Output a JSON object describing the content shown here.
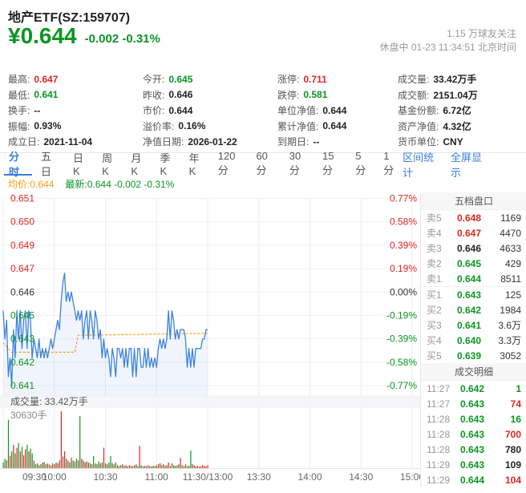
{
  "header": {
    "title": "地产ETF(SZ:159707)",
    "price": "¥0.644",
    "change": "-0.002 -0.31%",
    "followers": "1.15 万球友关注",
    "status_line": "休盘中 01-23 11:34:51 北京时间"
  },
  "colors": {
    "red": "#dd2723",
    "green": "#0a9622",
    "dark": "#222",
    "gray": "#999",
    "blue": "#3b7ddd",
    "orange": "#ff9d0f",
    "line_blue": "#3b82e0"
  },
  "stats": {
    "columns": [
      [
        {
          "label": "最高:",
          "value": "0.647",
          "color": "red"
        },
        {
          "label": "最低:",
          "value": "0.641",
          "color": "green"
        },
        {
          "label": "换手:",
          "value": "--",
          "color": "dark"
        },
        {
          "label": "振幅:",
          "value": "0.93%",
          "color": "dark"
        },
        {
          "label": "成立日:",
          "value": "2021-11-04",
          "color": "dark"
        }
      ],
      [
        {
          "label": "今开:",
          "value": "0.645",
          "color": "green"
        },
        {
          "label": "昨收:",
          "value": "0.646",
          "color": "dark"
        },
        {
          "label": "市价:",
          "value": "0.644",
          "color": "dark"
        },
        {
          "label": "溢价率:",
          "value": "0.16%",
          "color": "dark"
        },
        {
          "label": "净值日期:",
          "value": "2026-01-22",
          "color": "dark"
        }
      ],
      [
        {
          "label": "涨停:",
          "value": "0.711",
          "color": "red"
        },
        {
          "label": "跌停:",
          "value": "0.581",
          "color": "green"
        },
        {
          "label": "单位净值:",
          "value": "0.644",
          "color": "dark"
        },
        {
          "label": "累计净值:",
          "value": "0.644",
          "color": "dark"
        },
        {
          "label": "到期日:",
          "value": "--",
          "color": "dark"
        }
      ],
      [
        {
          "label": "成交量:",
          "value": "33.42万手",
          "color": "dark"
        },
        {
          "label": "成交额:",
          "value": "2151.04万",
          "color": "dark"
        },
        {
          "label": "基金份额:",
          "value": "6.72亿",
          "color": "dark"
        },
        {
          "label": "资产净值:",
          "value": "4.32亿",
          "color": "dark"
        },
        {
          "label": "货币单位:",
          "value": "CNY",
          "color": "dark"
        }
      ]
    ]
  },
  "tabs": {
    "items": [
      {
        "label": "分时",
        "active": true
      },
      {
        "label": "五日",
        "active": false
      },
      {
        "label": "日K",
        "active": false
      },
      {
        "label": "周K",
        "active": false
      },
      {
        "label": "月K",
        "active": false
      },
      {
        "label": "季K",
        "active": false
      },
      {
        "label": "年K",
        "active": false
      },
      {
        "label": "120分",
        "active": false
      },
      {
        "label": "60分",
        "active": false
      },
      {
        "label": "30分",
        "active": false
      },
      {
        "label": "15分",
        "active": false
      },
      {
        "label": "5分",
        "active": false
      },
      {
        "label": "1分",
        "active": false
      }
    ],
    "right_links": [
      "区间统计",
      "全屏显示"
    ]
  },
  "legend": {
    "avg_label": "均价:0.644",
    "latest_label": "最新:0.644 -0.002 -0.31%"
  },
  "chart_data": {
    "type": "line",
    "title": "分时走势图 (minute price chart)",
    "prev_close": 0.646,
    "high": 0.647,
    "low": 0.641,
    "last": 0.644,
    "avg": 0.644,
    "x_axis_labels": [
      "09:30",
      "10:00",
      "10:30",
      "11:00",
      "11:30/13:00",
      "13:30",
      "14:00",
      "14:30",
      "15:00"
    ],
    "y_axis_left": [
      {
        "t": "0.651",
        "c": "red"
      },
      {
        "t": "0.650",
        "c": "red"
      },
      {
        "t": "0.649",
        "c": "red"
      },
      {
        "t": "0.647",
        "c": "red"
      },
      {
        "t": "0.646",
        "c": "dark"
      },
      {
        "t": "0.645",
        "c": "green"
      },
      {
        "t": "0.643",
        "c": "green"
      },
      {
        "t": "0.642",
        "c": "green"
      },
      {
        "t": "0.641",
        "c": "green"
      }
    ],
    "y_axis_right": [
      {
        "t": "0.77%",
        "c": "red"
      },
      {
        "t": "0.58%",
        "c": "red"
      },
      {
        "t": "0.39%",
        "c": "red"
      },
      {
        "t": "0.19%",
        "c": "red"
      },
      {
        "t": "0.00%",
        "c": "dark"
      },
      {
        "t": "-0.19%",
        "c": "green"
      },
      {
        "t": "-0.39%",
        "c": "green"
      },
      {
        "t": "-0.58%",
        "c": "green"
      },
      {
        "t": "-0.77%",
        "c": "green"
      }
    ],
    "pct_range": 0.0077,
    "volume_header": "成交量: 33.42万手",
    "volume_max_label": "30630手",
    "volume_max": 30630,
    "price_series": [
      0.645,
      0.6435,
      0.6445,
      0.6415,
      0.6425,
      0.641,
      0.644,
      0.6425,
      0.645,
      0.6435,
      0.645,
      0.643,
      0.6445,
      0.645,
      0.643,
      0.645,
      0.6445,
      0.6425,
      0.6435,
      0.643,
      0.6425,
      0.6435,
      0.6425,
      0.643,
      0.6425,
      0.643,
      0.6425,
      0.643,
      0.6435,
      0.643,
      0.6435,
      0.644,
      0.6445,
      0.644,
      0.6455,
      0.6465,
      0.647,
      0.6455,
      0.646,
      0.6455,
      0.646,
      0.6455,
      0.645,
      0.6445,
      0.645,
      0.6445,
      0.645,
      0.6435,
      0.6445,
      0.645,
      0.6435,
      0.645,
      0.6445,
      0.6435,
      0.645,
      0.6445,
      0.6435,
      0.644,
      0.6425,
      0.6435,
      0.6425,
      0.643,
      0.6425,
      0.6415,
      0.643,
      0.6425,
      0.6415,
      0.643,
      0.643,
      0.6425,
      0.643,
      0.642,
      0.643,
      0.642,
      0.643,
      0.643,
      0.6415,
      0.643,
      0.6415,
      0.643,
      0.643,
      0.642,
      0.642,
      0.643,
      0.642,
      0.643,
      0.642,
      0.6425,
      0.642,
      0.6425,
      0.642,
      0.643,
      0.6435,
      0.643,
      0.6435,
      0.643,
      0.6435,
      0.645,
      0.6435,
      0.645,
      0.6445,
      0.6435,
      0.644,
      0.6435,
      0.644,
      0.644,
      0.644,
      0.6435,
      0.642,
      0.643,
      0.642,
      0.643,
      0.642,
      0.643,
      0.643,
      0.643,
      0.643,
      0.6435,
      0.6435,
      0.644,
      0.644
    ],
    "avg_breakpoints": [
      [
        0,
        0.6433
      ],
      [
        5,
        0.6428
      ],
      [
        42,
        0.6428
      ],
      [
        44,
        0.6437
      ],
      [
        120,
        0.6438
      ]
    ],
    "volume_series": [
      3000,
      5000,
      4200,
      26000,
      6500,
      9000,
      12500,
      8000,
      11000,
      13500,
      9000,
      11500,
      7000,
      10200,
      12500,
      9000,
      10500,
      8000,
      4000,
      2200,
      2600,
      1600,
      2100,
      3000,
      3400,
      2100,
      2500,
      2000,
      1500,
      2600,
      2100,
      3100,
      2600,
      4100,
      30630,
      6200,
      9100,
      5100,
      4100,
      3100,
      5600,
      4100,
      3600,
      5100,
      4200,
      28000,
      5100,
      4100,
      3100,
      3600,
      3100,
      2600,
      2100,
      6600,
      2600,
      2100,
      3600,
      2600,
      3100,
      11000,
      2600,
      2100,
      3100,
      6600,
      2600,
      2100,
      3100,
      1600,
      1100,
      1600,
      2100,
      1300,
      1600,
      1100,
      1600,
      1300,
      1100,
      1600,
      2100,
      1100,
      12000,
      1600,
      1100,
      1300,
      1100,
      1600,
      1100,
      900,
      1300,
      1100,
      1600,
      2100,
      2600,
      1600,
      2100,
      1300,
      1600,
      3100,
      1100,
      2600,
      1600,
      1300,
      1600,
      2100,
      5600,
      1600,
      1100,
      2100,
      1100,
      1300,
      9500,
      2100,
      1600,
      1100,
      1300,
      900,
      1100,
      1600,
      1300,
      900,
      1600
    ]
  },
  "order_book": {
    "title": "五档盘口",
    "rows": [
      {
        "label": "卖5",
        "price": "0.648",
        "pcolor": "red",
        "volume": "1169"
      },
      {
        "label": "卖4",
        "price": "0.647",
        "pcolor": "red",
        "volume": "4470"
      },
      {
        "label": "卖3",
        "price": "0.646",
        "pcolor": "dark",
        "volume": "4633"
      },
      {
        "label": "卖2",
        "price": "0.645",
        "pcolor": "green",
        "volume": "429"
      },
      {
        "label": "卖1",
        "price": "0.644",
        "pcolor": "green",
        "volume": "8511"
      },
      {
        "label": "买1",
        "price": "0.643",
        "pcolor": "green",
        "volume": "125"
      },
      {
        "label": "买2",
        "price": "0.642",
        "pcolor": "green",
        "volume": "1984"
      },
      {
        "label": "买3",
        "price": "0.641",
        "pcolor": "green",
        "volume": "3.6万"
      },
      {
        "label": "买4",
        "price": "0.640",
        "pcolor": "green",
        "volume": "3.3万"
      },
      {
        "label": "买5",
        "price": "0.639",
        "pcolor": "green",
        "volume": "3052"
      }
    ]
  },
  "transactions": {
    "title": "成交明细",
    "rows": [
      {
        "time": "11:27",
        "price": "0.642",
        "volume": "1",
        "vcolor": "green"
      },
      {
        "time": "11:27",
        "price": "0.643",
        "volume": "74",
        "vcolor": "red"
      },
      {
        "time": "11:28",
        "price": "0.643",
        "volume": "16",
        "vcolor": "green"
      },
      {
        "time": "11:28",
        "price": "0.643",
        "volume": "700",
        "vcolor": "red"
      },
      {
        "time": "11:28",
        "price": "0.643",
        "volume": "780",
        "vcolor": "dark"
      },
      {
        "time": "11:29",
        "price": "0.643",
        "volume": "109",
        "vcolor": "dark"
      },
      {
        "time": "11:29",
        "price": "0.644",
        "volume": "104",
        "vcolor": "red"
      }
    ]
  }
}
